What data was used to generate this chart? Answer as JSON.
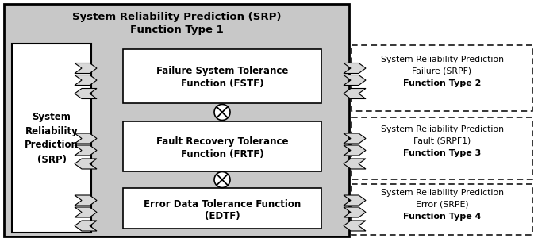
{
  "title_line1": "System Reliability Prediction (SRP)",
  "title_line2": "Function Type 1",
  "srp_label": "System\nReliability\nPrediction\n(SRP)",
  "box1_line1": "Failure System Tolerance",
  "box1_line2": "Function (FSTF)",
  "box2_line1": "Fault Recovery Tolerance",
  "box2_line2": "Function (FRTF)",
  "box3_line1": "Error Data Tolerance Function",
  "box3_line2": "(EDTF)",
  "right1_line1": "System Reliability Prediction",
  "right1_line2": "Failure (SRPF)",
  "right1_line3": "Function Type 2",
  "right2_line1": "System Reliability Prediction",
  "right2_line2": "Fault (SRPF1)",
  "right2_line3": "Function Type 3",
  "right3_line1": "System Reliability Prediction",
  "right3_line2": "Error (SRPE)",
  "right3_line3": "Function Type 4",
  "outer_bg": "#c8c8c8",
  "band_bg": "#c8c8c8",
  "box_bg": "#ffffff",
  "black": "#000000"
}
